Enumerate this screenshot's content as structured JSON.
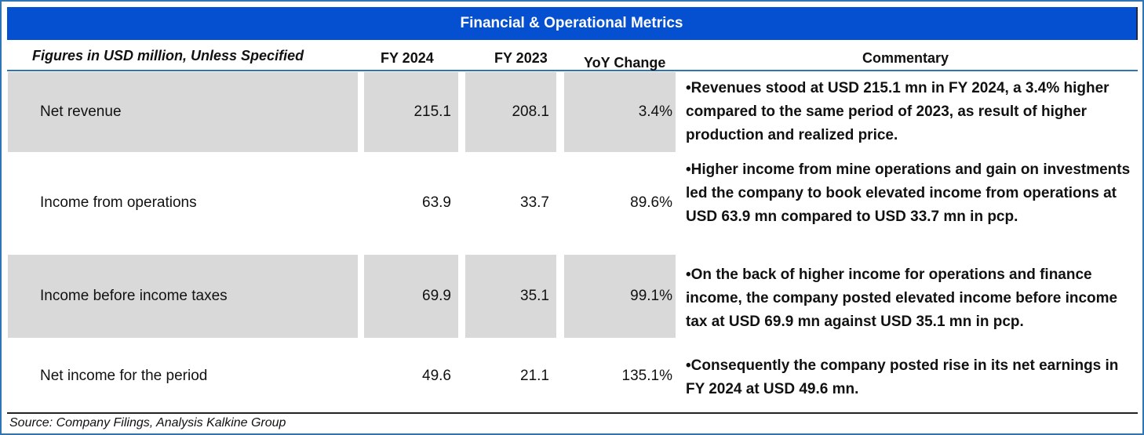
{
  "table": {
    "title": "Financial & Operational Metrics",
    "headers": {
      "metric": "Figures in USD million, Unless Specified",
      "fy2024": "FY 2024",
      "fy2023": "FY 2023",
      "yoy": "YoY Change",
      "commentary": "Commentary"
    },
    "rows": [
      {
        "label": "Net revenue",
        "fy2024": "215.1",
        "fy2023": "208.1",
        "yoy": "3.4%",
        "commentary": "•Revenues stood at USD 215.1 mn in FY 2024, a 3.4% higher compared to the same period of 2023, as result of higher production and realized price."
      },
      {
        "label": "Income from operations",
        "fy2024": "63.9",
        "fy2023": "33.7",
        "yoy": "89.6%",
        "commentary": "•Higher income from mine operations and gain on investments led the company to book elevated income from operations at USD 63.9 mn compared to USD 33.7 mn in pcp."
      },
      {
        "label": "Income before income taxes",
        "fy2024": "69.9",
        "fy2023": "35.1",
        "yoy": "99.1%",
        "commentary": "•On the back of higher income for operations and finance income, the company posted elevated income before income tax at USD 69.9 mn against USD 35.1 mn in pcp."
      },
      {
        "label": "Net income for the period",
        "fy2024": "49.6",
        "fy2023": "21.1",
        "yoy": "135.1%",
        "commentary": "•Consequently the company posted rise in its net earnings in FY 2024 at USD 49.6 mn."
      }
    ],
    "source": "Source: Company Filings, Analysis Kalkine Group"
  },
  "colors": {
    "title_bg": "#0550D0",
    "border": "#2E75B6",
    "shaded_cell": "#D9D9D9"
  }
}
